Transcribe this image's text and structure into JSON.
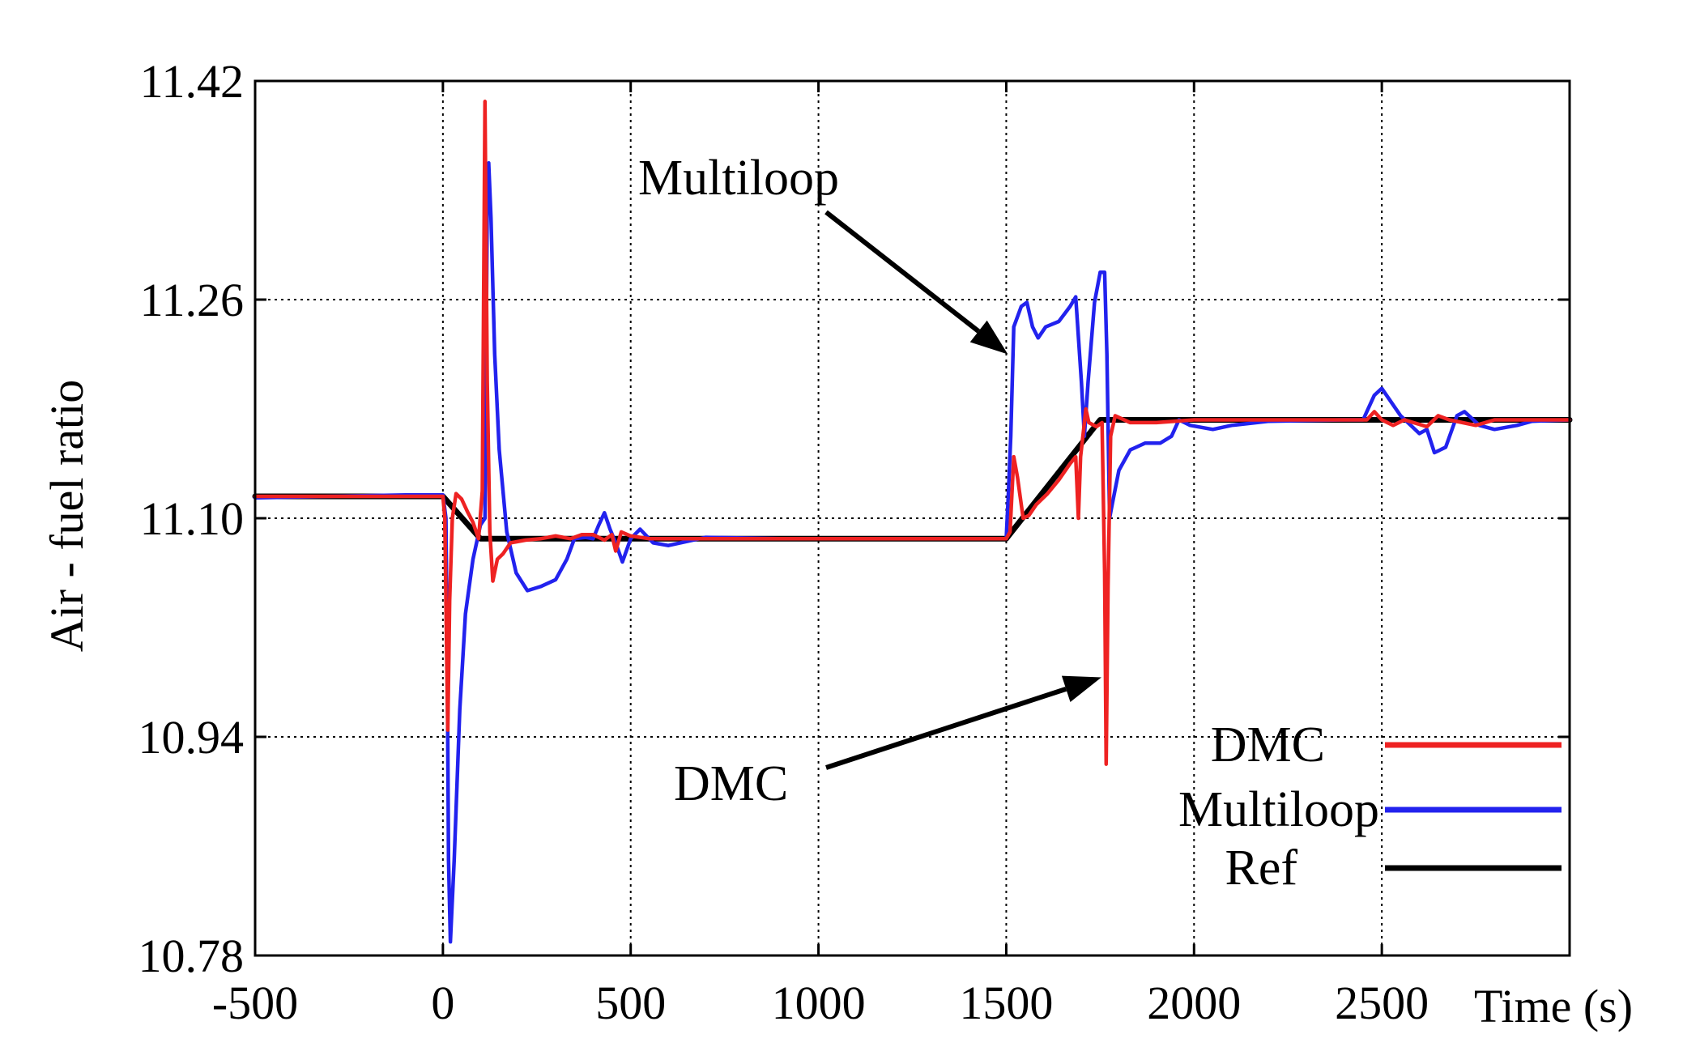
{
  "chart_data": {
    "type": "line",
    "title": "",
    "xlabel": "Time (s)",
    "ylabel": "Air - fuel ratio",
    "xlim": [
      -500,
      3000
    ],
    "ylim": [
      10.78,
      11.42
    ],
    "grid": true,
    "legend_position": "bottom-right",
    "x_ticks": [
      -500,
      0,
      500,
      1000,
      1500,
      2000,
      2500
    ],
    "x_tick_labels": [
      "-500",
      "0",
      "500",
      "1000",
      "1500",
      "2000",
      "2500"
    ],
    "y_ticks": [
      10.78,
      10.94,
      11.1,
      11.26,
      11.42
    ],
    "y_tick_labels": [
      "10.78",
      "10.94",
      "11.10",
      "11.26",
      "11.42"
    ],
    "series": [
      {
        "name": "DMC",
        "color": "#ee2222",
        "points": [
          [
            -500,
            11.116
          ],
          [
            -100,
            11.116
          ],
          [
            0,
            11.116
          ],
          [
            5,
            11.1
          ],
          [
            10,
            11.0
          ],
          [
            13,
            10.945
          ],
          [
            18,
            11.04
          ],
          [
            25,
            11.1
          ],
          [
            35,
            11.118
          ],
          [
            50,
            11.114
          ],
          [
            65,
            11.105
          ],
          [
            80,
            11.097
          ],
          [
            95,
            11.085
          ],
          [
            105,
            11.12
          ],
          [
            112,
            11.405
          ],
          [
            118,
            11.2
          ],
          [
            125,
            11.09
          ],
          [
            133,
            11.054
          ],
          [
            145,
            11.07
          ],
          [
            160,
            11.074
          ],
          [
            180,
            11.082
          ],
          [
            220,
            11.084
          ],
          [
            260,
            11.085
          ],
          [
            300,
            11.087
          ],
          [
            340,
            11.085
          ],
          [
            370,
            11.088
          ],
          [
            400,
            11.088
          ],
          [
            430,
            11.084
          ],
          [
            450,
            11.088
          ],
          [
            460,
            11.076
          ],
          [
            475,
            11.09
          ],
          [
            500,
            11.087
          ],
          [
            550,
            11.085
          ],
          [
            600,
            11.085
          ],
          [
            800,
            11.085
          ],
          [
            1000,
            11.085
          ],
          [
            1200,
            11.085
          ],
          [
            1400,
            11.085
          ],
          [
            1500,
            11.085
          ],
          [
            1510,
            11.09
          ],
          [
            1520,
            11.145
          ],
          [
            1530,
            11.13
          ],
          [
            1545,
            11.1
          ],
          [
            1560,
            11.102
          ],
          [
            1580,
            11.11
          ],
          [
            1610,
            11.118
          ],
          [
            1640,
            11.128
          ],
          [
            1670,
            11.14
          ],
          [
            1685,
            11.145
          ],
          [
            1692,
            11.1
          ],
          [
            1698,
            11.145
          ],
          [
            1706,
            11.165
          ],
          [
            1712,
            11.18
          ],
          [
            1720,
            11.17
          ],
          [
            1740,
            11.167
          ],
          [
            1755,
            11.17
          ],
          [
            1762,
            11.06
          ],
          [
            1766,
            10.92
          ],
          [
            1771,
            11.05
          ],
          [
            1778,
            11.16
          ],
          [
            1790,
            11.175
          ],
          [
            1830,
            11.17
          ],
          [
            1900,
            11.17
          ],
          [
            2000,
            11.172
          ],
          [
            2200,
            11.172
          ],
          [
            2400,
            11.172
          ],
          [
            2460,
            11.172
          ],
          [
            2480,
            11.178
          ],
          [
            2500,
            11.172
          ],
          [
            2530,
            11.168
          ],
          [
            2560,
            11.172
          ],
          [
            2620,
            11.167
          ],
          [
            2650,
            11.175
          ],
          [
            2680,
            11.172
          ],
          [
            2750,
            11.168
          ],
          [
            2800,
            11.172
          ],
          [
            3000,
            11.172
          ]
        ]
      },
      {
        "name": "Multiloop",
        "color": "#2222ee",
        "points": [
          [
            -500,
            11.115
          ],
          [
            -100,
            11.117
          ],
          [
            0,
            11.117
          ],
          [
            8,
            11.1
          ],
          [
            12,
            10.98
          ],
          [
            15,
            10.85
          ],
          [
            20,
            10.79
          ],
          [
            30,
            10.85
          ],
          [
            45,
            10.96
          ],
          [
            60,
            11.03
          ],
          [
            80,
            11.07
          ],
          [
            100,
            11.095
          ],
          [
            112,
            11.1
          ],
          [
            118,
            11.33
          ],
          [
            122,
            11.36
          ],
          [
            128,
            11.32
          ],
          [
            138,
            11.22
          ],
          [
            150,
            11.15
          ],
          [
            170,
            11.09
          ],
          [
            195,
            11.06
          ],
          [
            225,
            11.047
          ],
          [
            260,
            11.05
          ],
          [
            300,
            11.055
          ],
          [
            330,
            11.07
          ],
          [
            350,
            11.085
          ],
          [
            380,
            11.086
          ],
          [
            400,
            11.085
          ],
          [
            415,
            11.095
          ],
          [
            430,
            11.104
          ],
          [
            445,
            11.092
          ],
          [
            460,
            11.082
          ],
          [
            478,
            11.068
          ],
          [
            500,
            11.085
          ],
          [
            525,
            11.092
          ],
          [
            560,
            11.082
          ],
          [
            600,
            11.08
          ],
          [
            700,
            11.086
          ],
          [
            900,
            11.085
          ],
          [
            1200,
            11.085
          ],
          [
            1400,
            11.085
          ],
          [
            1500,
            11.085
          ],
          [
            1506,
            11.12
          ],
          [
            1512,
            11.16
          ],
          [
            1520,
            11.24
          ],
          [
            1540,
            11.255
          ],
          [
            1555,
            11.258
          ],
          [
            1570,
            11.24
          ],
          [
            1585,
            11.232
          ],
          [
            1605,
            11.24
          ],
          [
            1640,
            11.244
          ],
          [
            1670,
            11.255
          ],
          [
            1685,
            11.262
          ],
          [
            1700,
            11.2
          ],
          [
            1708,
            11.16
          ],
          [
            1718,
            11.2
          ],
          [
            1735,
            11.258
          ],
          [
            1750,
            11.28
          ],
          [
            1762,
            11.28
          ],
          [
            1768,
            11.22
          ],
          [
            1775,
            11.1
          ],
          [
            1782,
            11.11
          ],
          [
            1800,
            11.135
          ],
          [
            1830,
            11.15
          ],
          [
            1870,
            11.155
          ],
          [
            1910,
            11.155
          ],
          [
            1940,
            11.16
          ],
          [
            1960,
            11.172
          ],
          [
            1990,
            11.168
          ],
          [
            2050,
            11.165
          ],
          [
            2100,
            11.168
          ],
          [
            2200,
            11.171
          ],
          [
            2400,
            11.172
          ],
          [
            2450,
            11.172
          ],
          [
            2480,
            11.19
          ],
          [
            2500,
            11.195
          ],
          [
            2520,
            11.187
          ],
          [
            2550,
            11.175
          ],
          [
            2600,
            11.162
          ],
          [
            2620,
            11.165
          ],
          [
            2640,
            11.148
          ],
          [
            2670,
            11.152
          ],
          [
            2700,
            11.175
          ],
          [
            2720,
            11.178
          ],
          [
            2760,
            11.168
          ],
          [
            2800,
            11.165
          ],
          [
            2860,
            11.168
          ],
          [
            2900,
            11.171
          ],
          [
            3000,
            11.172
          ]
        ]
      },
      {
        "name": "Ref",
        "color": "#000000",
        "points": [
          [
            -500,
            11.116
          ],
          [
            0,
            11.116
          ],
          [
            100,
            11.085
          ],
          [
            1500,
            11.085
          ],
          [
            1750,
            11.172
          ],
          [
            3000,
            11.172
          ]
        ]
      }
    ],
    "legend": [
      {
        "label": "DMC",
        "color": "#ee2222"
      },
      {
        "label": "Multiloop",
        "color": "#2222ee"
      },
      {
        "label": "Ref",
        "color": "#000000"
      }
    ],
    "annotations": [
      {
        "text": "Multiloop",
        "points_to": [
          1500,
          11.22
        ]
      },
      {
        "text": "DMC",
        "points_to": [
          1762,
          10.98
        ]
      }
    ]
  }
}
